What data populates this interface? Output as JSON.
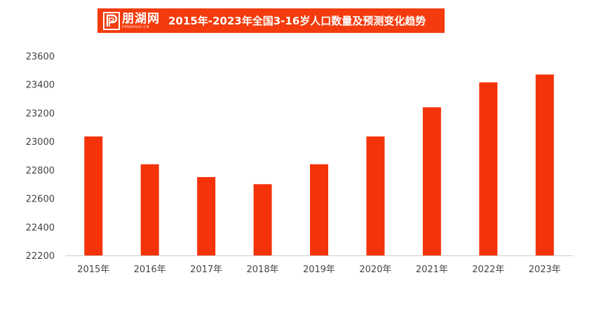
{
  "logo": {
    "name": "朋湖网",
    "domain": "PENGHUO.CN"
  },
  "title": "2015年-2023年全国3-16岁人口数量及预测变化趋势",
  "colors": {
    "bar": "#f5330a",
    "banner": "#f33b0d",
    "axis_text": "#444444",
    "baseline": "#cccccc"
  },
  "chart_data": {
    "type": "bar",
    "title": "2015年-2023年全国3-16岁人口数量及预测变化趋势",
    "categories": [
      "2015年",
      "2016年",
      "2017年",
      "2018年",
      "2019年",
      "2020年",
      "2021年",
      "2022年",
      "2023年"
    ],
    "values": [
      23035,
      22840,
      22750,
      22700,
      22840,
      23035,
      23240,
      23415,
      23470
    ],
    "ylim": [
      22200,
      23600
    ],
    "yticks": [
      22200,
      22400,
      22600,
      22800,
      23000,
      23200,
      23400,
      23600
    ],
    "ytick_labels": [
      "22200",
      "22400",
      "22600",
      "22800",
      "23000",
      "23200",
      "23400",
      "23600"
    ],
    "xlabel": "",
    "ylabel": "",
    "grid": false,
    "legend": "none"
  }
}
